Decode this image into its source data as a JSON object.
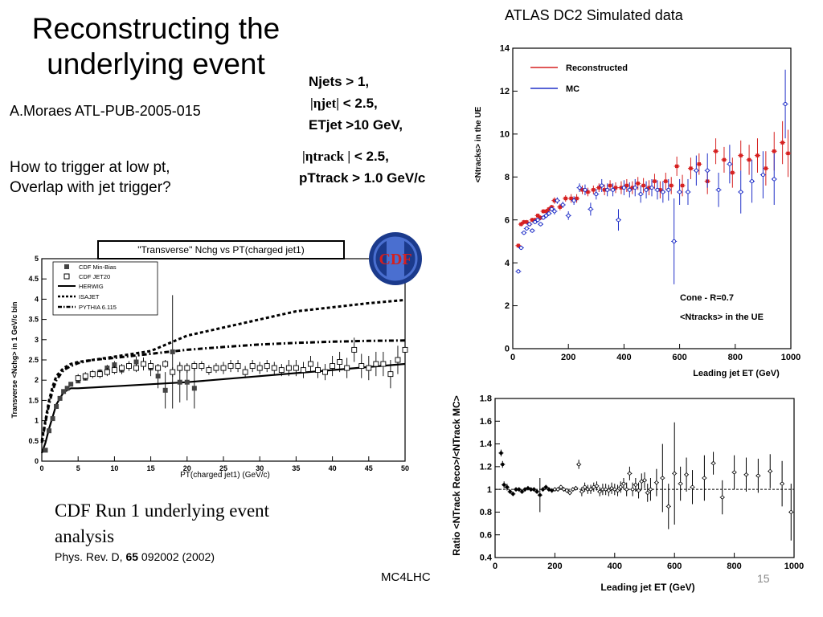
{
  "slide": {
    "title_line1": "Reconstructing the",
    "title_line2": "underlying event",
    "author": "A.Moraes ATL-PUB-2005-015",
    "question_line1": "How to trigger at low pt,",
    "question_line2": "Overlap with jet trigger?",
    "cut_njets": "Njets > 1,",
    "cut_etajet_symbol": "|ηjet|",
    "cut_etajet_value": " < 2.5,",
    "cut_etjet": "ETjet >10 GeV,",
    "cut_etatrack_symbol": "|ηtrack |",
    "cut_etatrack_value": " < 2.5,",
    "cut_pttrack": "pTtrack > 1.0 GeV/c",
    "atlas_label": "ATLAS DC2 Simulated data",
    "caption_line1": "CDF Run 1 underlying event",
    "caption_line2": "analysis",
    "ref_prefix": "Phys. Rev. D, ",
    "ref_volume": "65",
    "ref_suffix": " 092002 (2002)",
    "footer": "MC4LHC",
    "slide_number": "15"
  },
  "cdf_logo": {
    "text": "CDF",
    "colors": {
      "outer": "#1b3a8c",
      "inner": "#4a6fd0",
      "text": "#d42020"
    }
  },
  "colors": {
    "reconstructed": "#d62020",
    "mc": "#2030c8"
  },
  "chart_data": [
    {
      "id": "cdf",
      "type": "line",
      "title": "\"Transverse\" Nchg vs PT(charged jet1)",
      "xlabel": "PT(charged jet1) (GeV/c)",
      "ylabel": "Transverse <Nchg> in 1 GeV/c bin",
      "xlim": [
        0,
        50
      ],
      "ylim": [
        0,
        5
      ],
      "x_ticks": [
        "0",
        "5",
        "10",
        "15",
        "20",
        "25",
        "30",
        "35",
        "40",
        "45",
        "50"
      ],
      "y_ticks": [
        "0",
        "0.5",
        "1",
        "1.5",
        "2",
        "2.5",
        "3",
        "3.5",
        "4",
        "4.5",
        "5"
      ],
      "legend": [
        "CDF Min-Bias",
        "CDF JET20",
        "HERWIG",
        "ISAJET",
        "PYTHIA 6.115"
      ],
      "series": [
        {
          "name": "CDF Min-Bias",
          "style": "filled-square",
          "x": [
            0.5,
            1,
            1.5,
            2,
            2.5,
            3,
            3.5,
            4,
            5,
            6,
            7,
            8,
            9,
            10,
            11,
            12,
            13,
            14,
            15,
            16,
            17,
            18,
            19,
            20,
            21
          ],
          "y": [
            0.27,
            0.75,
            1.05,
            1.35,
            1.55,
            1.72,
            1.8,
            1.9,
            1.98,
            2.05,
            2.15,
            2.2,
            2.3,
            2.38,
            2.25,
            2.35,
            2.45,
            2.4,
            2.3,
            2.1,
            1.75,
            2.7,
            1.95,
            1.95,
            1.8
          ],
          "err": [
            0.02,
            0.03,
            0.04,
            0.05,
            0.05,
            0.05,
            0.05,
            0.05,
            0.05,
            0.06,
            0.06,
            0.07,
            0.08,
            0.09,
            0.1,
            0.12,
            0.14,
            0.16,
            0.2,
            0.3,
            0.45,
            1.4,
            0.5,
            0.45,
            0.5
          ]
        },
        {
          "name": "CDF JET20",
          "style": "open-square",
          "x": [
            5,
            6,
            7,
            8,
            9,
            10,
            11,
            12,
            13,
            14,
            15,
            16,
            17,
            18,
            19,
            20,
            21,
            22,
            23,
            24,
            25,
            26,
            27,
            28,
            29,
            30,
            31,
            32,
            33,
            34,
            35,
            36,
            37,
            38,
            39,
            40,
            41,
            42,
            43,
            44,
            45,
            46,
            47,
            48,
            49,
            50
          ],
          "y": [
            2.05,
            2.1,
            2.15,
            2.15,
            2.2,
            2.25,
            2.3,
            2.35,
            2.3,
            2.4,
            2.35,
            2.3,
            2.4,
            2.2,
            2.3,
            2.3,
            2.35,
            2.35,
            2.25,
            2.3,
            2.3,
            2.35,
            2.35,
            2.2,
            2.35,
            2.3,
            2.35,
            2.3,
            2.25,
            2.3,
            2.3,
            2.25,
            2.4,
            2.25,
            2.2,
            2.35,
            2.45,
            2.3,
            2.75,
            2.35,
            2.3,
            2.4,
            2.4,
            2.15,
            2.5,
            2.75
          ],
          "err": [
            0.1,
            0.1,
            0.1,
            0.1,
            0.1,
            0.1,
            0.1,
            0.1,
            0.1,
            0.1,
            0.1,
            0.1,
            0.1,
            0.12,
            0.12,
            0.12,
            0.12,
            0.12,
            0.12,
            0.12,
            0.15,
            0.15,
            0.15,
            0.15,
            0.15,
            0.15,
            0.15,
            0.15,
            0.15,
            0.2,
            0.2,
            0.2,
            0.2,
            0.2,
            0.2,
            0.25,
            0.25,
            0.25,
            0.3,
            0.3,
            0.3,
            0.3,
            0.3,
            0.35,
            0.35,
            0.35
          ]
        },
        {
          "name": "HERWIG",
          "style": "solid",
          "x": [
            0,
            0.5,
            1,
            1.5,
            2,
            3,
            4,
            5,
            10,
            20,
            30,
            40,
            50
          ],
          "y": [
            0.2,
            0.45,
            0.8,
            1.1,
            1.4,
            1.7,
            1.8,
            1.8,
            1.85,
            1.95,
            2.1,
            2.25,
            2.4
          ]
        },
        {
          "name": "ISAJET",
          "style": "dash",
          "x": [
            0,
            0.5,
            1,
            1.5,
            2,
            3,
            4,
            5,
            7,
            10,
            15,
            20,
            25,
            30,
            35,
            40,
            45,
            50
          ],
          "y": [
            0.5,
            1.0,
            1.5,
            1.85,
            2.1,
            2.3,
            2.4,
            2.45,
            2.5,
            2.58,
            2.72,
            3.1,
            3.3,
            3.5,
            3.7,
            3.8,
            3.9,
            3.98
          ]
        },
        {
          "name": "PYTHIA 6.115",
          "style": "dashdot",
          "x": [
            0,
            0.5,
            1,
            1.5,
            2,
            3,
            4,
            5,
            7,
            10,
            15,
            20,
            25,
            30,
            35,
            40,
            45,
            50
          ],
          "y": [
            0.45,
            0.95,
            1.4,
            1.75,
            2.0,
            2.25,
            2.35,
            2.42,
            2.5,
            2.55,
            2.65,
            2.75,
            2.82,
            2.88,
            2.92,
            2.95,
            2.97,
            2.98
          ]
        }
      ]
    },
    {
      "id": "atlas",
      "type": "scatter",
      "xlabel": "Leading jet ET (GeV)",
      "ylabel": "<Ntracks> in the UE",
      "xlim": [
        0,
        1000
      ],
      "ylim": [
        0,
        14
      ],
      "x_ticks": [
        "0",
        "200",
        "400",
        "600",
        "800",
        "1000"
      ],
      "y_ticks": [
        "0",
        "2",
        "4",
        "6",
        "8",
        "10",
        "12",
        "14"
      ],
      "legend": [
        "Reconstructed",
        "MC"
      ],
      "annotation_line1": "Cone - R=0.7",
      "annotation_line2": "<Ntracks> in the UE",
      "series": [
        {
          "name": "Reconstructed",
          "x": [
            20,
            30,
            40,
            50,
            60,
            70,
            80,
            90,
            100,
            110,
            120,
            130,
            140,
            150,
            170,
            190,
            210,
            230,
            250,
            270,
            290,
            310,
            330,
            350,
            370,
            390,
            410,
            430,
            450,
            470,
            490,
            510,
            530,
            550,
            570,
            590,
            610,
            640,
            670,
            700,
            730,
            760,
            790,
            820,
            850,
            880,
            910,
            940,
            970,
            990
          ],
          "y": [
            4.8,
            5.8,
            5.9,
            5.9,
            5.8,
            6.0,
            6.0,
            6.2,
            6.1,
            6.4,
            6.4,
            6.5,
            6.6,
            6.9,
            6.6,
            7.0,
            7.0,
            7.0,
            7.4,
            7.3,
            7.4,
            7.5,
            7.4,
            7.6,
            7.5,
            7.5,
            7.6,
            7.5,
            7.7,
            7.6,
            7.5,
            7.8,
            7.4,
            7.8,
            7.6,
            8.5,
            7.6,
            8.4,
            8.6,
            7.8,
            9.2,
            8.8,
            8.2,
            9.0,
            8.8,
            9.0,
            8.4,
            9.2,
            9.6,
            9.1
          ],
          "err": [
            0.1,
            0.1,
            0.1,
            0.1,
            0.1,
            0.1,
            0.1,
            0.1,
            0.1,
            0.1,
            0.1,
            0.1,
            0.1,
            0.15,
            0.15,
            0.15,
            0.2,
            0.2,
            0.2,
            0.2,
            0.2,
            0.2,
            0.25,
            0.25,
            0.25,
            0.3,
            0.3,
            0.3,
            0.3,
            0.35,
            0.35,
            0.35,
            0.4,
            0.4,
            0.4,
            0.45,
            0.5,
            0.5,
            0.5,
            0.6,
            0.6,
            0.6,
            0.7,
            0.7,
            0.7,
            0.8,
            0.8,
            0.9,
            1.0,
            1.1
          ]
        },
        {
          "name": "MC",
          "x": [
            20,
            30,
            40,
            50,
            60,
            70,
            80,
            90,
            100,
            110,
            120,
            130,
            140,
            150,
            160,
            180,
            200,
            220,
            240,
            260,
            280,
            300,
            320,
            340,
            360,
            380,
            400,
            420,
            440,
            460,
            480,
            500,
            520,
            540,
            560,
            580,
            600,
            630,
            660,
            700,
            740,
            780,
            820,
            860,
            900,
            940,
            980
          ],
          "y": [
            3.6,
            4.7,
            5.4,
            5.6,
            5.8,
            5.5,
            5.9,
            6.0,
            5.8,
            6.1,
            6.2,
            6.3,
            6.5,
            6.4,
            6.9,
            6.7,
            6.2,
            6.9,
            7.5,
            7.4,
            6.5,
            7.2,
            7.6,
            7.4,
            7.4,
            6.0,
            7.5,
            7.4,
            7.5,
            7.2,
            7.4,
            7.5,
            7.4,
            7.3,
            7.4,
            5.0,
            7.3,
            7.3,
            8.3,
            8.3,
            7.4,
            8.6,
            7.3,
            7.8,
            8.1,
            7.9,
            11.4
          ],
          "err": [
            0.1,
            0.1,
            0.1,
            0.1,
            0.1,
            0.1,
            0.1,
            0.1,
            0.1,
            0.1,
            0.1,
            0.1,
            0.1,
            0.15,
            0.15,
            0.15,
            0.2,
            0.2,
            0.2,
            0.25,
            0.3,
            0.25,
            0.3,
            0.3,
            0.3,
            0.5,
            0.35,
            0.35,
            0.4,
            0.4,
            0.4,
            0.4,
            0.45,
            0.5,
            0.5,
            2.0,
            0.6,
            0.6,
            0.7,
            0.8,
            0.8,
            0.9,
            1.0,
            1.0,
            1.1,
            1.2,
            1.6
          ]
        }
      ]
    },
    {
      "id": "ratio",
      "type": "scatter",
      "xlabel": "Leading jet ET (GeV)",
      "ylabel": "Ratio <NTrack Reco>/<NTrack MC>",
      "xlim": [
        0,
        1000
      ],
      "ylim": [
        0.4,
        1.8
      ],
      "x_ticks": [
        "0",
        "200",
        "400",
        "600",
        "800",
        "1000"
      ],
      "y_ticks": [
        "0.4",
        "0.6",
        "0.8",
        "1",
        "1.2",
        "1.4",
        "1.6",
        "1.8"
      ],
      "reference_line": 1,
      "series": [
        {
          "name": "",
          "x": [
            20,
            25,
            30,
            40,
            50,
            60,
            70,
            80,
            90,
            100,
            110,
            120,
            130,
            140,
            150,
            160,
            170,
            180,
            190,
            200,
            210,
            220,
            230,
            240,
            250,
            260,
            270,
            280,
            290,
            300,
            310,
            320,
            330,
            340,
            350,
            360,
            370,
            380,
            390,
            400,
            410,
            420,
            430,
            440,
            450,
            460,
            470,
            480,
            490,
            500,
            510,
            520,
            540,
            560,
            580,
            600,
            620,
            640,
            660,
            700,
            730,
            760,
            800,
            840,
            880,
            920,
            960,
            990
          ],
          "y": [
            1.32,
            1.22,
            1.04,
            1.02,
            0.98,
            0.96,
            1.0,
            1.0,
            0.98,
            1.0,
            1.01,
            1.0,
            1.0,
            0.98,
            0.95,
            1.0,
            1.02,
            1.0,
            0.99,
            1.0,
            1.0,
            1.02,
            1.0,
            0.99,
            0.97,
            1.0,
            1.01,
            1.22,
            0.98,
            1.02,
            1.0,
            1.0,
            1.02,
            1.03,
            0.98,
            1.0,
            1.0,
            0.99,
            1.01,
            1.0,
            0.99,
            1.02,
            1.05,
            1.0,
            1.14,
            1.0,
            1.04,
            0.99,
            1.07,
            1.08,
            0.97,
            1.0,
            1.06,
            1.1,
            0.85,
            1.14,
            1.05,
            1.13,
            1.02,
            1.1,
            1.23,
            0.93,
            1.15,
            1.13,
            1.12,
            1.16,
            1.05,
            0.8
          ],
          "err": [
            0.03,
            0.03,
            0.03,
            0.03,
            0.02,
            0.02,
            0.02,
            0.02,
            0.02,
            0.02,
            0.02,
            0.02,
            0.02,
            0.02,
            0.15,
            0.02,
            0.02,
            0.02,
            0.02,
            0.02,
            0.02,
            0.02,
            0.02,
            0.02,
            0.02,
            0.02,
            0.02,
            0.04,
            0.04,
            0.04,
            0.04,
            0.04,
            0.04,
            0.04,
            0.04,
            0.05,
            0.05,
            0.05,
            0.05,
            0.05,
            0.05,
            0.05,
            0.05,
            0.06,
            0.06,
            0.06,
            0.06,
            0.07,
            0.07,
            0.07,
            0.08,
            0.1,
            0.12,
            0.3,
            0.2,
            0.45,
            0.15,
            0.15,
            0.15,
            0.2,
            0.1,
            0.15,
            0.15,
            0.15,
            0.15,
            0.15,
            0.2,
            0.25
          ]
        }
      ]
    }
  ]
}
